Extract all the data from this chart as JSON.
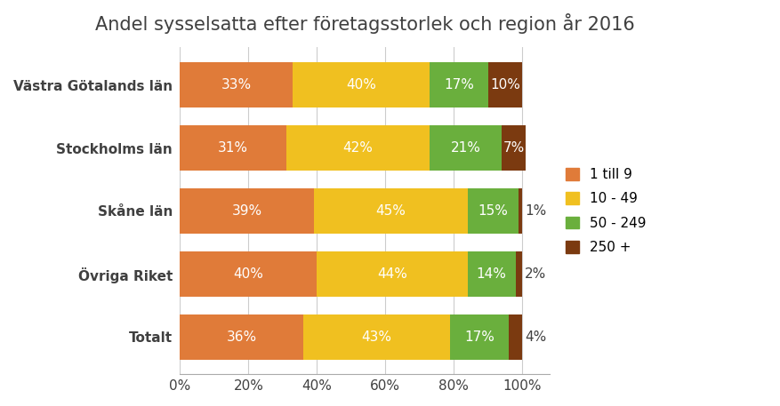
{
  "title": "Andel sysselsatta efter företagsstorlek och region år 2016",
  "categories": [
    "Totalt",
    "Övriga Riket",
    "Skåne län",
    "Stockholms län",
    "Västra Götalands län"
  ],
  "series": {
    "1 till 9": [
      36,
      40,
      39,
      31,
      33
    ],
    "10 - 49": [
      43,
      44,
      45,
      42,
      40
    ],
    "50 - 249": [
      17,
      14,
      15,
      21,
      17
    ],
    "250 +": [
      4,
      2,
      1,
      7,
      10
    ]
  },
  "colors": {
    "1 till 9": "#E07B39",
    "10 - 49": "#F0C020",
    "50 - 249": "#6AAF3D",
    "250 +": "#7B3A10"
  },
  "labels": {
    "1 till 9": [
      "36%",
      "40%",
      "39%",
      "31%",
      "33%"
    ],
    "10 - 49": [
      "43%",
      "44%",
      "45%",
      "42%",
      "40%"
    ],
    "50 - 249": [
      "17%",
      "14%",
      "15%",
      "21%",
      "17%"
    ],
    "250 +": [
      "4%",
      "2%",
      "1%",
      "7%",
      "10%"
    ]
  },
  "outside_threshold": 5,
  "background_color": "#ffffff",
  "title_fontsize": 15,
  "tick_fontsize": 11,
  "label_fontsize": 11,
  "legend_fontsize": 11,
  "bar_height": 0.72
}
